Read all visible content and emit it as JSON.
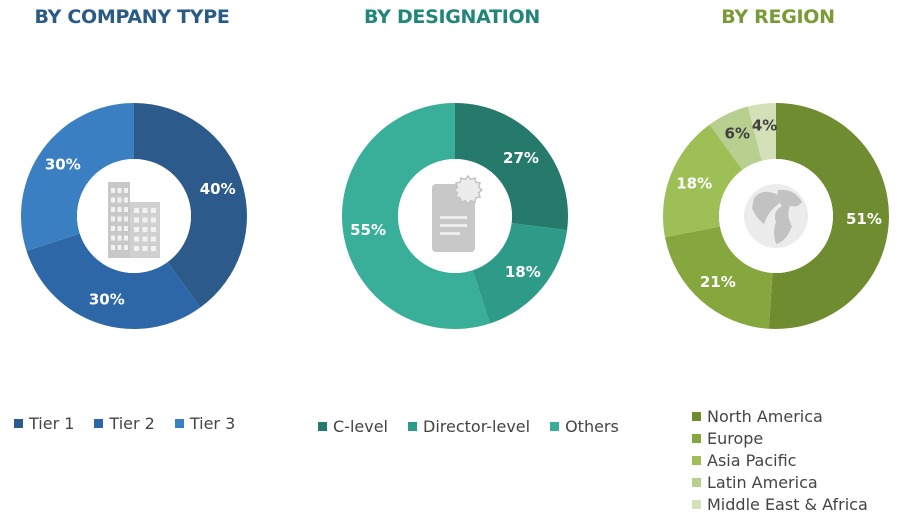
{
  "chart_data": [
    {
      "type": "pie",
      "title": "BY COMPANY TYPE",
      "title_color": "#2a5a86",
      "categories": [
        "Tier 1",
        "Tier 2",
        "Tier 3"
      ],
      "values": [
        40,
        30,
        30
      ],
      "value_labels": [
        "40%",
        "30%",
        "30%"
      ],
      "colors": [
        "#2c5a8a",
        "#2e67a8",
        "#3a7fc1"
      ],
      "center_icon": "building-icon",
      "legend_position": "bottom"
    },
    {
      "type": "pie",
      "title": "BY DESIGNATION",
      "title_color": "#22857a",
      "categories": [
        "C-level",
        "Director-level",
        "Others"
      ],
      "values": [
        27,
        18,
        55
      ],
      "value_labels": [
        "27%",
        "18%",
        "55%"
      ],
      "colors": [
        "#267a6c",
        "#2e9b88",
        "#39ae98"
      ],
      "center_icon": "certificate-document-icon",
      "legend_position": "bottom"
    },
    {
      "type": "pie",
      "title": "BY REGION",
      "title_color": "#7a9a35",
      "categories": [
        "North America",
        "Europe",
        "Asia Pacific",
        "Latin America",
        "Middle East & Africa"
      ],
      "values": [
        51,
        21,
        18,
        6,
        4
      ],
      "value_labels": [
        "51%",
        "21%",
        "18%",
        "6%",
        "4%"
      ],
      "colors": [
        "#6f8c30",
        "#86a63e",
        "#9dbf55",
        "#b8cf8f",
        "#d3e0b8"
      ],
      "center_icon": "globe-icon",
      "legend_position": "bottom"
    }
  ]
}
